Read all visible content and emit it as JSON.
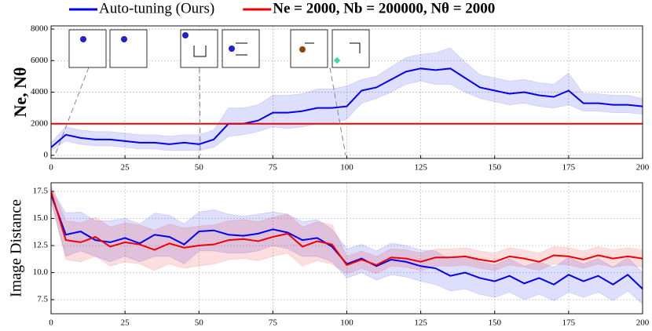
{
  "chart_data": [
    {
      "type": "line",
      "ylabel": "Ne, Nθ",
      "x": [
        0,
        5,
        10,
        15,
        20,
        25,
        30,
        35,
        40,
        45,
        50,
        55,
        60,
        65,
        70,
        75,
        80,
        85,
        90,
        95,
        100,
        105,
        110,
        115,
        120,
        125,
        130,
        135,
        140,
        145,
        150,
        155,
        160,
        165,
        170,
        175,
        180,
        185,
        190,
        195,
        200
      ],
      "xlim": [
        0,
        200
      ],
      "xticks": [
        0,
        25,
        50,
        75,
        100,
        125,
        150,
        175,
        200
      ],
      "ylim": [
        -200,
        8200
      ],
      "yticks": [
        0,
        2000,
        4000,
        6000,
        8000
      ],
      "grid": true,
      "series": [
        {
          "name": "Auto-tuning (Ours)",
          "color": "#0000ee",
          "values": [
            500,
            1300,
            1100,
            1000,
            1000,
            900,
            800,
            800,
            700,
            800,
            700,
            1000,
            2000,
            2000,
            2200,
            2700,
            2700,
            2800,
            3000,
            3000,
            3100,
            4100,
            4300,
            4800,
            5300,
            5500,
            5400,
            5500,
            4900,
            4300,
            4100,
            3900,
            4000,
            3800,
            3700,
            4100,
            3300,
            3300,
            3200,
            3200,
            3100
          ],
          "lower": [
            300,
            900,
            700,
            600,
            600,
            500,
            400,
            400,
            300,
            300,
            300,
            500,
            1200,
            1300,
            1500,
            1800,
            1700,
            1800,
            2000,
            2000,
            2300,
            3300,
            3600,
            4000,
            4500,
            4700,
            4500,
            4500,
            4000,
            3600,
            3400,
            3200,
            3300,
            3100,
            3000,
            3200,
            2800,
            2800,
            2700,
            2700,
            2600
          ],
          "upper": [
            800,
            1800,
            1600,
            1500,
            1500,
            1400,
            1300,
            1300,
            1200,
            1300,
            1300,
            1600,
            3000,
            3000,
            3200,
            3800,
            3800,
            3900,
            4200,
            4200,
            4400,
            4800,
            5000,
            5600,
            6200,
            6400,
            6500,
            6800,
            5900,
            5100,
            4900,
            4700,
            4800,
            4600,
            4500,
            5200,
            3900,
            3900,
            3800,
            3800,
            3600
          ]
        },
        {
          "name": "Ne = 2000, Nb = 200000, Nθ = 2000",
          "color": "#ee0000",
          "values": [
            2000,
            2000,
            2000,
            2000,
            2000,
            2000,
            2000,
            2000,
            2000,
            2000,
            2000,
            2000,
            2000,
            2000,
            2000,
            2000,
            2000,
            2000,
            2000,
            2000,
            2000,
            2000,
            2000,
            2000,
            2000,
            2000,
            2000,
            2000,
            2000,
            2000,
            2000,
            2000,
            2000,
            2000,
            2000,
            2000,
            2000,
            2000,
            2000,
            2000,
            2000
          ]
        }
      ]
    },
    {
      "type": "line",
      "ylabel": "Image Distance",
      "x": [
        0,
        5,
        10,
        15,
        20,
        25,
        30,
        35,
        40,
        45,
        50,
        55,
        60,
        65,
        70,
        75,
        80,
        85,
        90,
        95,
        100,
        105,
        110,
        115,
        120,
        125,
        130,
        135,
        140,
        145,
        150,
        155,
        160,
        165,
        170,
        175,
        180,
        185,
        190,
        195,
        200
      ],
      "xlim": [
        0,
        200
      ],
      "xticks": [
        0,
        25,
        50,
        75,
        100,
        125,
        150,
        175,
        200
      ],
      "ylim": [
        6.2,
        18.3
      ],
      "yticks": [
        7.5,
        {
          "value": 10,
          "label": "10.0"
        },
        12.5,
        {
          "value": 15,
          "label": "15.0"
        },
        17.5
      ],
      "grid": true,
      "series": [
        {
          "color": "#0000ee",
          "values": [
            17.2,
            13.5,
            13.8,
            13.0,
            12.8,
            13.2,
            12.7,
            13.5,
            13.3,
            12.6,
            13.8,
            13.9,
            13.5,
            13.4,
            13.6,
            14.0,
            13.7,
            13.0,
            13.2,
            12.4,
            10.8,
            11.3,
            10.6,
            11.2,
            11.0,
            10.6,
            10.4,
            9.7,
            10.0,
            9.5,
            9.2,
            9.7,
            9.0,
            9.5,
            8.9,
            9.8,
            9.2,
            9.7,
            8.9,
            9.8,
            8.5
          ],
          "lower": [
            16.5,
            11.5,
            12.0,
            11.5,
            11.0,
            11.5,
            11.0,
            11.5,
            11.5,
            10.8,
            12.0,
            12.0,
            11.8,
            11.8,
            12.0,
            12.5,
            12.2,
            11.5,
            11.5,
            11.0,
            9.5,
            10.0,
            9.3,
            9.8,
            9.6,
            9.2,
            8.9,
            8.3,
            8.5,
            8.0,
            7.7,
            8.2,
            7.5,
            8.0,
            7.4,
            8.2,
            7.7,
            8.2,
            7.4,
            8.3,
            7.1
          ],
          "upper": [
            17.8,
            15.5,
            15.6,
            14.8,
            14.8,
            15.0,
            14.5,
            15.5,
            15.3,
            14.5,
            15.6,
            15.8,
            15.4,
            15.2,
            15.4,
            15.6,
            15.4,
            14.7,
            14.9,
            14.0,
            12.2,
            12.6,
            12.0,
            12.7,
            12.5,
            12.1,
            12.0,
            11.2,
            11.6,
            11.0,
            10.7,
            11.3,
            10.6,
            11.0,
            10.5,
            11.4,
            10.8,
            11.3,
            10.5,
            11.4,
            10.0
          ]
        },
        {
          "color": "#ee0000",
          "values": [
            17.5,
            13.0,
            12.8,
            13.3,
            12.4,
            12.8,
            12.6,
            12.1,
            12.7,
            12.3,
            12.5,
            12.6,
            13.0,
            13.1,
            12.9,
            13.3,
            13.6,
            12.4,
            12.9,
            12.6,
            10.7,
            11.2,
            10.7,
            11.4,
            11.3,
            11.0,
            11.4,
            11.4,
            11.5,
            11.2,
            11.0,
            11.5,
            11.3,
            11.0,
            11.6,
            11.5,
            11.2,
            11.6,
            11.3,
            11.5,
            11.3
          ],
          "lower": [
            16.8,
            11.2,
            11.0,
            11.5,
            10.6,
            11.0,
            10.8,
            10.2,
            10.8,
            10.4,
            10.6,
            10.8,
            11.2,
            11.3,
            11.1,
            11.5,
            11.8,
            10.6,
            11.1,
            10.8,
            9.9,
            10.4,
            9.9,
            10.6,
            10.5,
            10.2,
            10.6,
            10.6,
            10.7,
            10.4,
            10.2,
            10.7,
            10.5,
            10.2,
            10.8,
            10.7,
            10.4,
            10.8,
            10.5,
            10.7,
            10.5
          ],
          "upper": [
            18.0,
            14.8,
            14.6,
            15.1,
            14.2,
            14.6,
            14.4,
            13.9,
            14.5,
            14.1,
            14.3,
            14.4,
            14.8,
            14.9,
            14.7,
            15.1,
            15.4,
            14.2,
            14.7,
            14.4,
            11.5,
            12.0,
            11.5,
            12.2,
            12.1,
            11.8,
            12.2,
            12.2,
            12.3,
            12.0,
            11.8,
            12.3,
            12.1,
            11.8,
            12.4,
            12.3,
            12.0,
            12.4,
            12.1,
            12.3,
            12.1
          ]
        }
      ]
    }
  ]
}
